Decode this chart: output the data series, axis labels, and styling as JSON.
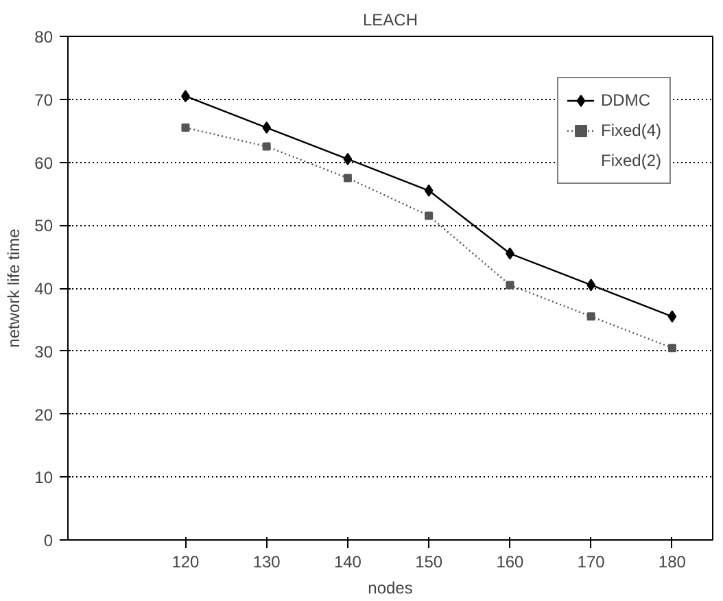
{
  "chart_data": {
    "type": "line",
    "title": "LEACH",
    "xlabel": "nodes",
    "ylabel": "network life time",
    "categories": [
      "120",
      "130",
      "140",
      "150",
      "160",
      "170",
      "180"
    ],
    "series": [
      {
        "name": "DDMC",
        "color": "#000000",
        "marker": "diamond",
        "line_style": "solid",
        "values": [
          70.5,
          65.5,
          60.5,
          55.5,
          45.5,
          40.5,
          35.5
        ]
      },
      {
        "name": "Fixed(4)",
        "color": "#555555",
        "marker": "square",
        "line_style": "dotted",
        "values": [
          65.5,
          62.5,
          57.5,
          51.5,
          40.5,
          35.5,
          30.5
        ]
      },
      {
        "name": "Fixed(2)",
        "marker": "none",
        "values": [
          null,
          null,
          null,
          null,
          null,
          null,
          null
        ]
      }
    ],
    "ylim": [
      0,
      80
    ],
    "yticks": [
      0,
      10,
      20,
      30,
      40,
      50,
      60,
      70,
      80
    ],
    "grid": "y",
    "legend": "top right"
  }
}
